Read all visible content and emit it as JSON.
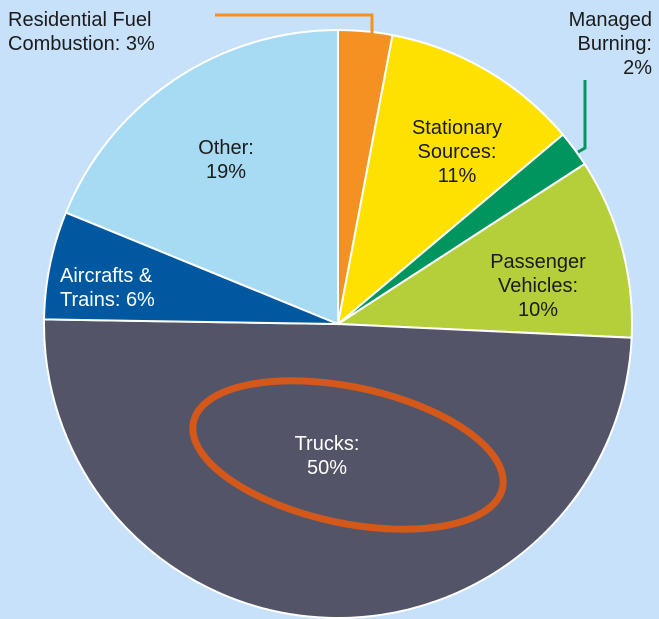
{
  "chart_data": {
    "type": "pie",
    "labels": [
      [
        "Residential Fuel",
        "Combustion: 3%"
      ],
      [
        "Stationary",
        "Sources:",
        "11%"
      ],
      [
        "Managed",
        "Burning:",
        "2%"
      ],
      [
        "Passenger",
        "Vehicles:",
        "10%"
      ],
      [
        "Trucks:",
        "50%"
      ],
      [
        "Aircrafts &",
        "Trains: 6%"
      ],
      [
        "Other:",
        "19%"
      ]
    ],
    "values": [
      3,
      11,
      2,
      10,
      50,
      6,
      19
    ],
    "colors": [
      "#f39223",
      "#ffe100",
      "#00955f",
      "#b4cf3a",
      "#535468",
      "#0059a0",
      "#a7dbf4"
    ]
  }
}
